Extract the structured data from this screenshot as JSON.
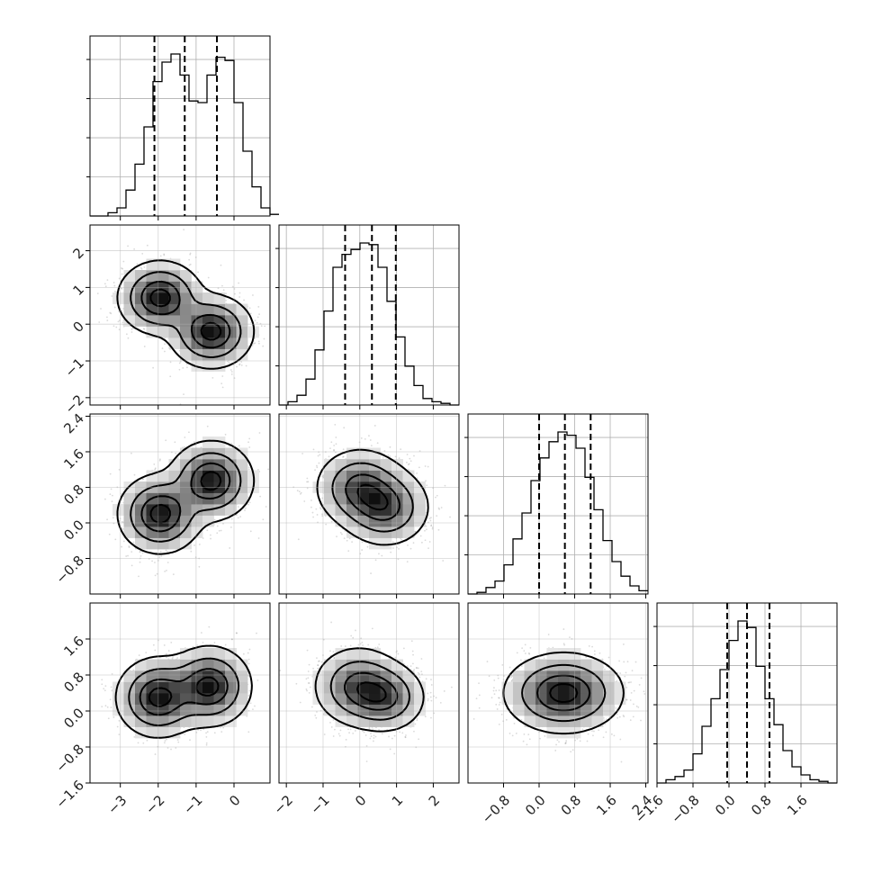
{
  "chart_data": {
    "type": "corner",
    "title": "",
    "grid": true,
    "n_params": 4,
    "params": [
      {
        "range": [
          -3.8,
          0.95
        ],
        "ticks": [
          -3,
          -2,
          -1,
          0
        ],
        "tick_labels": [
          "−3",
          "−2",
          "−1",
          "0"
        ],
        "quantiles": [
          -2.1,
          -1.3,
          -0.45
        ],
        "histogram": {
          "bin_start": -3.8,
          "bin_width": 0.2375,
          "counts": [
            0.0,
            0.0,
            0.02,
            0.05,
            0.16,
            0.32,
            0.55,
            0.83,
            0.95,
            1.0,
            0.87,
            0.71,
            0.7,
            0.87,
            0.98,
            0.96,
            0.7,
            0.4,
            0.18,
            0.05,
            0.01
          ]
        }
      },
      {
        "range": [
          -2.2,
          2.7
        ],
        "ticks": [
          -2,
          -1,
          0,
          1,
          2
        ],
        "tick_labels": [
          "−2",
          "−1",
          "0",
          "1",
          "2"
        ],
        "quantiles": [
          -0.4,
          0.33,
          0.98
        ],
        "histogram": {
          "bin_start": -2.2,
          "bin_width": 0.245,
          "counts": [
            0.0,
            0.02,
            0.06,
            0.16,
            0.34,
            0.58,
            0.85,
            0.93,
            0.96,
            1.0,
            0.99,
            0.85,
            0.64,
            0.42,
            0.24,
            0.12,
            0.04,
            0.02,
            0.01,
            0.0
          ]
        }
      },
      {
        "range": [
          -1.6,
          2.45
        ],
        "ticks": [
          -0.8,
          0.0,
          0.8,
          1.6,
          2.4
        ],
        "tick_labels": [
          "−0.8",
          "0.0",
          "0.8",
          "1.6",
          "2.4"
        ],
        "quantiles": [
          0.0,
          0.58,
          1.16
        ],
        "histogram": {
          "bin_start": -1.6,
          "bin_width": 0.2025,
          "counts": [
            0.0,
            0.01,
            0.04,
            0.08,
            0.18,
            0.34,
            0.5,
            0.7,
            0.84,
            0.94,
            1.0,
            0.98,
            0.9,
            0.72,
            0.52,
            0.33,
            0.2,
            0.11,
            0.05,
            0.02
          ]
        }
      },
      {
        "range": [
          -1.6,
          2.4
        ],
        "ticks": [
          -1.6,
          -0.8,
          0.0,
          0.8,
          1.6
        ],
        "tick_labels": [
          "−1.6",
          "−0.8",
          "0.0",
          "0.8",
          "1.6"
        ],
        "quantiles": [
          -0.04,
          0.4,
          0.9
        ],
        "histogram": {
          "bin_start": -1.6,
          "bin_width": 0.2,
          "counts": [
            0.0,
            0.02,
            0.04,
            0.08,
            0.18,
            0.35,
            0.52,
            0.7,
            0.88,
            1.0,
            0.96,
            0.72,
            0.52,
            0.36,
            0.2,
            0.1,
            0.05,
            0.02,
            0.01,
            0.0
          ]
        }
      }
    ],
    "pairs": [
      {
        "row": 1,
        "col": 0,
        "modes": [
          {
            "x": -1.95,
            "y": 0.72,
            "sx": 0.5,
            "sy": 0.45,
            "w": 1.0
          },
          {
            "x": -0.6,
            "y": -0.2,
            "sx": 0.5,
            "sy": 0.45,
            "w": 1.0
          }
        ]
      },
      {
        "row": 2,
        "col": 0,
        "modes": [
          {
            "x": -1.95,
            "y": 0.2,
            "sx": 0.5,
            "sy": 0.4,
            "w": 1.0
          },
          {
            "x": -0.6,
            "y": 0.95,
            "sx": 0.5,
            "sy": 0.4,
            "w": 1.0
          }
        ]
      },
      {
        "row": 2,
        "col": 1,
        "modes": [
          {
            "x": 0.0,
            "y": 0.8,
            "sx": 0.55,
            "sy": 0.4,
            "w": 1.0
          },
          {
            "x": 0.7,
            "y": 0.35,
            "sx": 0.55,
            "sy": 0.4,
            "w": 1.0
          }
        ]
      },
      {
        "row": 3,
        "col": 0,
        "modes": [
          {
            "x": -2.0,
            "y": 0.3,
            "sx": 0.5,
            "sy": 0.4,
            "w": 1.0
          },
          {
            "x": -0.65,
            "y": 0.55,
            "sx": 0.5,
            "sy": 0.4,
            "w": 1.0
          }
        ]
      },
      {
        "row": 3,
        "col": 1,
        "modes": [
          {
            "x": -0.05,
            "y": 0.55,
            "sx": 0.55,
            "sy": 0.4,
            "w": 1.0
          },
          {
            "x": 0.7,
            "y": 0.3,
            "sx": 0.5,
            "sy": 0.35,
            "w": 0.9
          }
        ]
      },
      {
        "row": 3,
        "col": 2,
        "modes": [
          {
            "x": 0.55,
            "y": 0.4,
            "sx": 0.6,
            "sy": 0.4,
            "w": 1.0
          }
        ]
      }
    ],
    "contour_levels": [
      0.88,
      0.62,
      0.3,
      0.08
    ],
    "colors": {
      "line": "#000000",
      "grid": "#b0b0b0",
      "density": "#000000"
    }
  }
}
